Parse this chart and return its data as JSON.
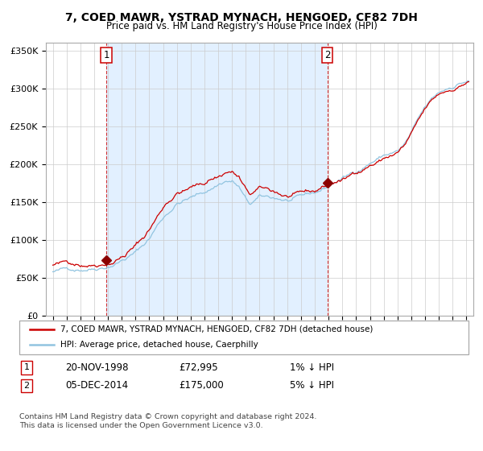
{
  "title": "7, COED MAWR, YSTRAD MYNACH, HENGOED, CF82 7DH",
  "subtitle": "Price paid vs. HM Land Registry's House Price Index (HPI)",
  "legend_line1": "7, COED MAWR, YSTRAD MYNACH, HENGOED, CF82 7DH (detached house)",
  "legend_line2": "HPI: Average price, detached house, Caerphilly",
  "annotation1_date": "20-NOV-1998",
  "annotation1_price": "£72,995",
  "annotation1_text": "1% ↓ HPI",
  "annotation2_date": "05-DEC-2014",
  "annotation2_price": "£175,000",
  "annotation2_text": "5% ↓ HPI",
  "footnote1": "Contains HM Land Registry data © Crown copyright and database right 2024.",
  "footnote2": "This data is licensed under the Open Government Licence v3.0.",
  "sale1_year": 1998.89,
  "sale1_value": 72995,
  "sale2_year": 2014.92,
  "sale2_value": 175000,
  "hpi_color": "#91c4e0",
  "price_color": "#cc0000",
  "bg_color": "#ddeeff",
  "plot_bg": "#ffffff",
  "grid_color": "#cccccc",
  "vline_color": "#cc0000",
  "marker_color": "#8b0000",
  "ylim_min": 0,
  "ylim_max": 360000,
  "xmin": 1994.5,
  "xmax": 2025.5
}
